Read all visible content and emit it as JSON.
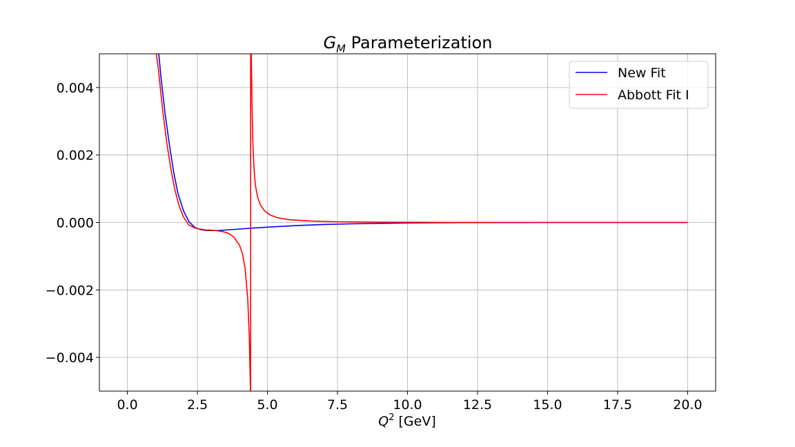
{
  "chart_data": {
    "type": "line",
    "title": {
      "main": "G",
      "sub": "M",
      "rest": " Parameterization"
    },
    "xlabel": {
      "main": "Q",
      "sup": "2",
      "rest": " [GeV]"
    },
    "ylabel": "",
    "xlim": [
      -1.0,
      21.0
    ],
    "ylim": [
      -0.005,
      0.005
    ],
    "grid": true,
    "legend_position": "upper-right",
    "x_ticks": [
      0.0,
      2.5,
      5.0,
      7.5,
      10.0,
      12.5,
      15.0,
      17.5,
      20.0
    ],
    "x_tick_labels": [
      "0.0",
      "2.5",
      "5.0",
      "7.5",
      "10.0",
      "12.5",
      "15.0",
      "17.5",
      "20.0"
    ],
    "y_ticks": [
      -0.004,
      -0.002,
      0.0,
      0.002,
      0.004
    ],
    "y_tick_labels": [
      "−0.004",
      "−0.002",
      "0.000",
      "0.002",
      "0.004"
    ],
    "series": [
      {
        "name": "New Fit",
        "color": "#0000ff",
        "x": [
          1.1,
          1.2,
          1.35,
          1.5,
          1.65,
          1.8,
          2.0,
          2.2,
          2.4,
          2.6,
          2.8,
          3.0,
          3.25,
          3.5,
          4.0,
          4.5,
          5.0,
          6.0,
          7.0,
          8.0,
          10.0,
          12.0,
          15.0,
          20.0
        ],
        "y": [
          0.0052,
          0.0043,
          0.0032,
          0.0023,
          0.0015,
          0.00087,
          0.00035,
          2e-05,
          -0.00014,
          -0.00021,
          -0.000235,
          -0.00024,
          -0.00024,
          -0.000225,
          -0.000195,
          -0.000165,
          -0.00014,
          -9.5e-05,
          -6e-05,
          -4e-05,
          -1.5e-05,
          -5e-06,
          0.0,
          0.0
        ]
      },
      {
        "name": "Abbott Fit I",
        "color": "#ff0000",
        "x": [
          1.0,
          1.1,
          1.25,
          1.4,
          1.55,
          1.7,
          1.85,
          2.0,
          2.2,
          2.4,
          2.6,
          2.8,
          3.0,
          3.2,
          3.4,
          3.6,
          3.8,
          4.0,
          4.1,
          4.2,
          4.3,
          4.35,
          4.38,
          4.4,
          4.4,
          4.42,
          4.45,
          4.48,
          4.52,
          4.57,
          4.65,
          4.75,
          4.9,
          5.1,
          5.4,
          5.8,
          6.5,
          7.5,
          9.0,
          11.0,
          14.0,
          20.0
        ],
        "y": [
          0.0052,
          0.0046,
          0.0034,
          0.0024,
          0.0016,
          0.00095,
          0.00048,
          0.00016,
          -8e-05,
          -0.00016,
          -0.0002,
          -0.00022,
          -0.00023,
          -0.000245,
          -0.00027,
          -0.00032,
          -0.00043,
          -0.00067,
          -0.0009,
          -0.00135,
          -0.0023,
          -0.0034,
          -0.0045,
          -0.0052,
          0.0052,
          0.0052,
          0.0035,
          0.0024,
          0.0016,
          0.0011,
          0.00075,
          0.00052,
          0.00034,
          0.00022,
          0.00013,
          8e-05,
          4.5e-05,
          2e-05,
          8e-06,
          3e-06,
          1e-06,
          0.0
        ]
      }
    ]
  }
}
